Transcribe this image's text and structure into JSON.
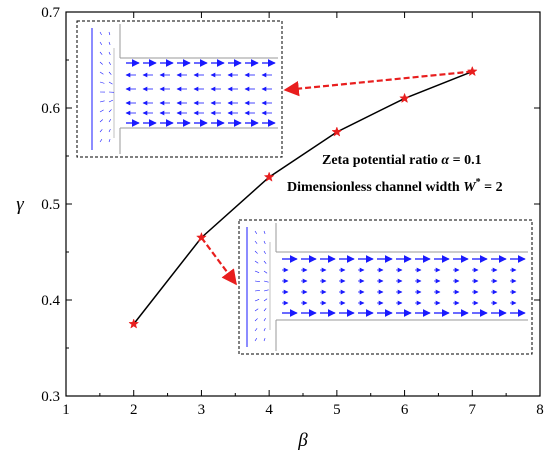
{
  "chart_data": {
    "type": "line",
    "xlabel": "β",
    "ylabel": "γ",
    "xlim": [
      1,
      8
    ],
    "ylim": [
      0.3,
      0.7
    ],
    "xticks": [
      "1",
      "2",
      "3",
      "4",
      "5",
      "6",
      "7",
      "8"
    ],
    "yticks": [
      "0.3",
      "0.4",
      "0.5",
      "0.6",
      "0.7"
    ],
    "grid": false,
    "series": [
      {
        "x": [
          2,
          3,
          4,
          5,
          6,
          7
        ],
        "y": [
          0.375,
          0.465,
          0.528,
          0.575,
          0.61,
          0.638
        ],
        "marker": "star",
        "line_color": "#000000",
        "marker_color": "#e81e1e"
      }
    ],
    "annotations": {
      "line1": {
        "text": "Zeta potential ratio ",
        "symbol": "α",
        "value": " = 0.1"
      },
      "line2": {
        "text": "Dimensionless channel width ",
        "symbol": "W",
        "sup": "*",
        "value": " = 2"
      }
    },
    "insets": [
      {
        "name": "inset-flow-beta-7",
        "linked_point": {
          "x": 7,
          "y": 0.638
        }
      },
      {
        "name": "inset-flow-beta-3",
        "linked_point": {
          "x": 3,
          "y": 0.465
        }
      }
    ]
  },
  "colors": {
    "series_line": "#000000",
    "marker": "#e81e1e",
    "leader_line": "#e81e1e",
    "vector": "#1a1aff",
    "channel_wall": "#999999"
  }
}
